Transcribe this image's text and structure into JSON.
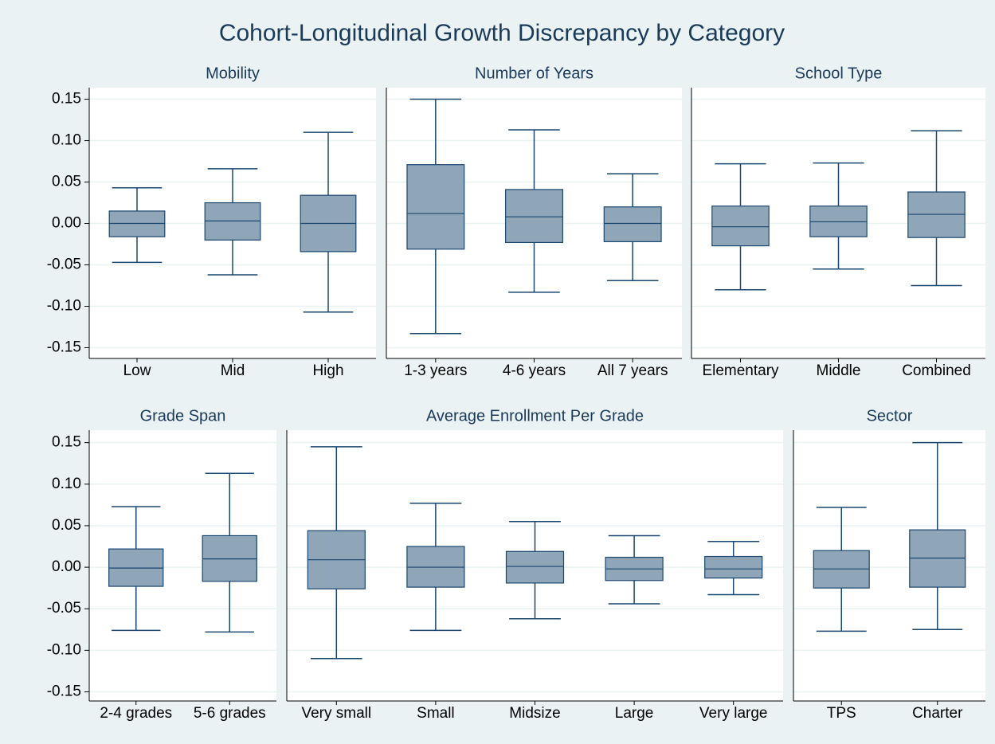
{
  "title": "Cohort-Longitudinal Growth Discrepancy by Category",
  "chart_data": [
    {
      "type": "box",
      "title": "Mobility",
      "categories": [
        "Low",
        "Mid",
        "High"
      ],
      "min": [
        -0.047,
        -0.062,
        -0.107
      ],
      "q1": [
        -0.016,
        -0.02,
        -0.034
      ],
      "median": [
        0,
        0.003,
        0
      ],
      "q3": [
        0.015,
        0.025,
        0.034
      ],
      "max": [
        0.043,
        0.066,
        0.11
      ],
      "ylim": [
        -0.163,
        0.164
      ],
      "yticks": [
        {
          "value": 0.15,
          "label": "0.15"
        },
        {
          "value": 0.1,
          "label": "0.10"
        },
        {
          "value": 0.05,
          "label": "0.05"
        },
        {
          "value": 0,
          "label": "0.00"
        },
        {
          "value": -0.05,
          "label": "-0.05"
        },
        {
          "value": -0.1,
          "label": "-0.10"
        },
        {
          "value": -0.15,
          "label": "-0.15"
        }
      ],
      "grid": true,
      "color": "#8fa5b8",
      "line_color": "#1a476f"
    },
    {
      "type": "box",
      "title": "Number of Years",
      "categories": [
        "1-3 years",
        "4-6 years",
        "All 7 years"
      ],
      "min": [
        -0.133,
        -0.083,
        -0.069
      ],
      "q1": [
        -0.031,
        -0.023,
        -0.022
      ],
      "median": [
        0.012,
        0.008,
        0
      ],
      "q3": [
        0.071,
        0.041,
        0.02
      ],
      "max": [
        0.15,
        0.113,
        0.06
      ],
      "ylim": [
        -0.163,
        0.164
      ],
      "grid": true,
      "color": "#8fa5b8",
      "line_color": "#1a476f"
    },
    {
      "type": "box",
      "title": "School Type",
      "categories": [
        "Elementary",
        "Middle",
        "Combined"
      ],
      "min": [
        -0.08,
        -0.055,
        -0.075
      ],
      "q1": [
        -0.027,
        -0.016,
        -0.017
      ],
      "median": [
        -0.004,
        0.002,
        0.011
      ],
      "q3": [
        0.021,
        0.021,
        0.038
      ],
      "max": [
        0.072,
        0.073,
        0.112
      ],
      "ylim": [
        -0.163,
        0.164
      ],
      "grid": true,
      "color": "#8fa5b8",
      "line_color": "#1a476f"
    },
    {
      "type": "box",
      "title": "Grade Span",
      "categories": [
        "2-4 grades",
        "5-6 grades"
      ],
      "min": [
        -0.076,
        -0.078
      ],
      "q1": [
        -0.023,
        -0.017
      ],
      "median": [
        -0.001,
        0.01
      ],
      "q3": [
        0.022,
        0.038
      ],
      "max": [
        0.073,
        0.113
      ],
      "ylim": [
        -0.161,
        0.165
      ],
      "yticks": [
        {
          "value": 0.15,
          "label": "0.15"
        },
        {
          "value": 0.1,
          "label": "0.10"
        },
        {
          "value": 0.05,
          "label": "0.05"
        },
        {
          "value": 0,
          "label": "0.00"
        },
        {
          "value": -0.05,
          "label": "-0.05"
        },
        {
          "value": -0.1,
          "label": "-0.10"
        },
        {
          "value": -0.15,
          "label": "-0.15"
        }
      ],
      "grid": true,
      "color": "#8fa5b8",
      "line_color": "#1a476f"
    },
    {
      "type": "box",
      "title": "Average Enrollment Per Grade",
      "categories": [
        "Very small",
        "Small",
        "Midsize",
        "Large",
        "Very large"
      ],
      "min": [
        -0.11,
        -0.076,
        -0.062,
        -0.044,
        -0.033
      ],
      "q1": [
        -0.026,
        -0.024,
        -0.019,
        -0.016,
        -0.013
      ],
      "median": [
        0.009,
        0,
        0.001,
        -0.002,
        -0.002
      ],
      "q3": [
        0.044,
        0.025,
        0.019,
        0.012,
        0.013
      ],
      "max": [
        0.145,
        0.077,
        0.055,
        0.038,
        0.031
      ],
      "ylim": [
        -0.161,
        0.165
      ],
      "grid": true,
      "color": "#8fa5b8",
      "line_color": "#1a476f"
    },
    {
      "type": "box",
      "title": "Sector",
      "categories": [
        "TPS",
        "Charter"
      ],
      "min": [
        -0.077,
        -0.075
      ],
      "q1": [
        -0.025,
        -0.024
      ],
      "median": [
        -0.002,
        0.011
      ],
      "q3": [
        0.02,
        0.045
      ],
      "max": [
        0.072,
        0.15
      ],
      "ylim": [
        -0.161,
        0.165
      ],
      "grid": true,
      "color": "#8fa5b8",
      "line_color": "#1a476f"
    }
  ]
}
